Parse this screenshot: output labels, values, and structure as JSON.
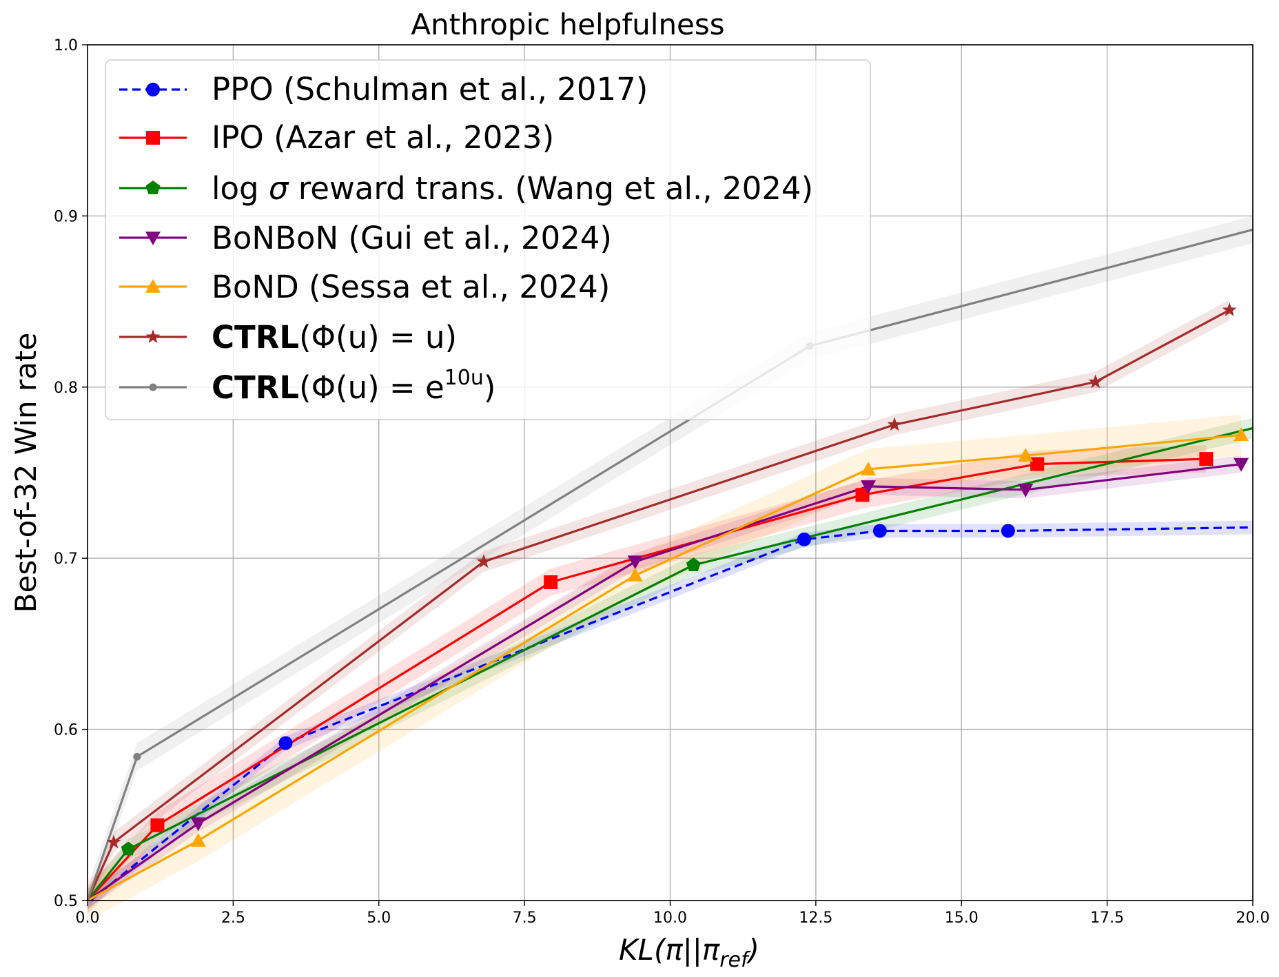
{
  "chart_data": {
    "type": "line",
    "title": "Anthropic helpfulness",
    "xlabel_parts": {
      "main": "KL(π||π",
      "sub": "ref",
      "close": ")"
    },
    "ylabel": "Best-of-32 Win rate",
    "xlim": [
      0,
      20
    ],
    "ylim": [
      0.5,
      1.0
    ],
    "grid": true,
    "legend_position": "upper-left",
    "x_ticks": [
      0,
      2.5,
      5,
      7.5,
      10,
      12.5,
      15,
      17.5,
      20
    ],
    "x_tick_labels": [
      "0.0",
      "2.5",
      "5.0",
      "7.5",
      "10.0",
      "12.5",
      "15.0",
      "17.5",
      "20.0"
    ],
    "y_ticks": [
      0.5,
      0.6,
      0.7,
      0.8,
      0.9,
      1.0
    ],
    "y_tick_labels": [
      "0.5",
      "0.6",
      "0.7",
      "0.8",
      "0.9",
      "1.0"
    ],
    "series": [
      {
        "key": "ppo",
        "name": "PPO (Schulman et al., 2017)",
        "color": "#0000ff",
        "marker": "circle",
        "dashed": true,
        "band": 0.004,
        "x": [
          0.05,
          3.4,
          12.3,
          13.6,
          15.8,
          20.0
        ],
        "y": [
          0.5,
          0.592,
          0.711,
          0.716,
          0.716,
          0.718
        ],
        "markers_at": [
          1,
          2,
          3,
          4
        ]
      },
      {
        "key": "ipo",
        "name": "IPO (Azar et al., 2023)",
        "color": "#ff0000",
        "marker": "square",
        "dashed": false,
        "band": 0.008,
        "x": [
          0.0,
          1.2,
          7.95,
          13.3,
          16.3,
          19.2
        ],
        "y": [
          0.5,
          0.544,
          0.686,
          0.737,
          0.755,
          0.758
        ],
        "markers_at": [
          1,
          2,
          3,
          4,
          5
        ]
      },
      {
        "key": "logsig",
        "name_parts": {
          "pre": "log ",
          "sym": "σ",
          "post": " reward trans. (Wang et al., 2024)"
        },
        "name": "log σ reward trans. (Wang et al., 2024)",
        "color": "#008000",
        "marker": "pentagon",
        "dashed": false,
        "band": 0.006,
        "x": [
          0.0,
          0.7,
          10.4,
          20.0
        ],
        "y": [
          0.5,
          0.53,
          0.696,
          0.776
        ],
        "markers_at": [
          1,
          2
        ]
      },
      {
        "key": "bonbon",
        "name": "BoNBoN (Gui et al., 2024)",
        "color": "#800080",
        "marker": "triangle-down",
        "dashed": false,
        "band": 0.005,
        "x": [
          0.0,
          1.9,
          9.4,
          13.4,
          16.1,
          19.8
        ],
        "y": [
          0.5,
          0.545,
          0.698,
          0.742,
          0.74,
          0.755
        ],
        "markers_at": [
          1,
          2,
          3,
          4,
          5
        ]
      },
      {
        "key": "bond",
        "name": "BoND (Sessa et al., 2024)",
        "color": "#ffa500",
        "marker": "triangle-up",
        "dashed": false,
        "band": 0.012,
        "x": [
          0.0,
          1.9,
          9.4,
          13.4,
          16.1,
          19.8
        ],
        "y": [
          0.5,
          0.535,
          0.69,
          0.752,
          0.76,
          0.772
        ],
        "markers_at": [
          1,
          2,
          3,
          4,
          5
        ]
      },
      {
        "key": "ctrl_u",
        "name_parts": {
          "bold": "CTRL",
          "rest": "(Φ(u) = u)"
        },
        "name": "CTRL(Φ(u) = u)",
        "color": "#a52a2a",
        "marker": "star",
        "dashed": false,
        "band": 0.006,
        "x": [
          0.0,
          0.45,
          6.8,
          13.85,
          17.3,
          19.6
        ],
        "y": [
          0.5,
          0.534,
          0.698,
          0.778,
          0.803,
          0.845
        ],
        "markers_at": [
          1,
          2,
          3,
          4,
          5
        ]
      },
      {
        "key": "ctrl_exp",
        "name_parts": {
          "bold": "CTRL",
          "rest": "(Φ(u) = e",
          "sup": "10u",
          "close": ")"
        },
        "name": "CTRL(Φ(u) = e^10u)",
        "color": "#808080",
        "marker": "dot",
        "dashed": false,
        "band": 0.008,
        "x": [
          0.0,
          0.85,
          12.4,
          20.0
        ],
        "y": [
          0.5,
          0.584,
          0.824,
          0.892
        ],
        "markers_at": [
          1,
          2
        ]
      }
    ]
  }
}
